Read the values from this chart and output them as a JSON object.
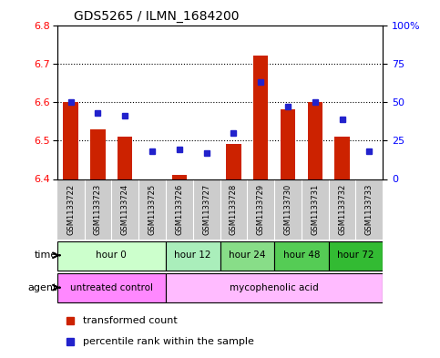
{
  "title": "GDS5265 / ILMN_1684200",
  "samples": [
    "GSM1133722",
    "GSM1133723",
    "GSM1133724",
    "GSM1133725",
    "GSM1133726",
    "GSM1133727",
    "GSM1133728",
    "GSM1133729",
    "GSM1133730",
    "GSM1133731",
    "GSM1133732",
    "GSM1133733"
  ],
  "transformed_count": [
    6.6,
    6.53,
    6.51,
    6.4,
    6.41,
    6.4,
    6.49,
    6.72,
    6.58,
    6.6,
    6.51,
    6.4
  ],
  "percentile_rank": [
    50,
    43,
    41,
    18,
    19,
    17,
    30,
    63,
    47,
    50,
    39,
    18
  ],
  "ylim_left": [
    6.4,
    6.8
  ],
  "ylim_right": [
    0,
    100
  ],
  "yticks_left": [
    6.4,
    6.5,
    6.6,
    6.7,
    6.8
  ],
  "yticks_right": [
    0,
    25,
    50,
    75,
    100
  ],
  "ytick_labels_right": [
    "0",
    "25",
    "50",
    "75",
    "100%"
  ],
  "bar_color": "#cc2200",
  "dot_color": "#2222cc",
  "bar_bottom": 6.4,
  "time_groups": [
    {
      "label": "hour 0",
      "start": 0,
      "end": 4,
      "color": "#ccffcc"
    },
    {
      "label": "hour 12",
      "start": 4,
      "end": 6,
      "color": "#aaeebb"
    },
    {
      "label": "hour 24",
      "start": 6,
      "end": 8,
      "color": "#88dd88"
    },
    {
      "label": "hour 48",
      "start": 8,
      "end": 10,
      "color": "#55cc55"
    },
    {
      "label": "hour 72",
      "start": 10,
      "end": 12,
      "color": "#33bb33"
    }
  ],
  "agent_groups": [
    {
      "label": "untreated control",
      "start": 0,
      "end": 4,
      "color": "#ff88ff"
    },
    {
      "label": "mycophenolic acid",
      "start": 4,
      "end": 12,
      "color": "#ffbbff"
    }
  ],
  "sample_bg_color": "#cccccc",
  "grid_yticks": [
    6.5,
    6.6,
    6.7
  ],
  "legend_red_label": "transformed count",
  "legend_blue_label": "percentile rank within the sample"
}
